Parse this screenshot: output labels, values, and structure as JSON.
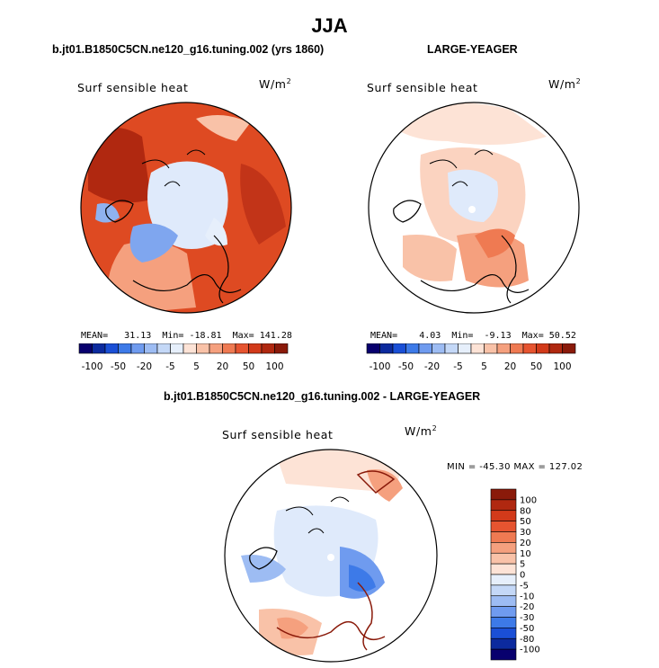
{
  "header": {
    "title": "JJA"
  },
  "panels": [
    {
      "subtitle": "b.jt01.B1850C5CN.ne120_g16.tuning.002 (yrs 1860)",
      "variable": "Surf sensible heat",
      "units": "W/m",
      "units_exp": "2",
      "stats": {
        "mean_label": "MEAN=",
        "mean": "31.13",
        "min_label": "Min=",
        "min": "-18.81",
        "max_label": "Max=",
        "max": "141.28"
      }
    },
    {
      "subtitle": "LARGE-YEAGER",
      "variable": "Surf sensible heat",
      "units": "W/m",
      "units_exp": "2",
      "stats": {
        "mean_label": "MEAN=",
        "mean": "4.03",
        "min_label": "Min=",
        "min": "-9.13",
        "max_label": "Max=",
        "max": "50.52"
      }
    },
    {
      "subtitle": "b.jt01.B1850C5CN.ne120_g16.tuning.002 - LARGE-YEAGER",
      "variable": "Surf sensible heat",
      "units": "W/m",
      "units_exp": "2",
      "minmax": "MIN = -45.30 MAX = 127.02"
    }
  ],
  "colorbar_h": {
    "labels": [
      "-100",
      "-50",
      "-20",
      "-5",
      "5",
      "20",
      "50",
      "100"
    ],
    "colors": [
      "#08006e",
      "#0c2a9e",
      "#1a4fd6",
      "#3d7ae8",
      "#6f9bef",
      "#9dbcf3",
      "#c4d8f7",
      "#e6effb",
      "#fde3d6",
      "#f9c2a8",
      "#f5a07e",
      "#ef7a52",
      "#e65430",
      "#d23a1a",
      "#b02810",
      "#8a1a0a"
    ]
  },
  "colorbar_v": {
    "labels": [
      "100",
      "80",
      "50",
      "30",
      "20",
      "10",
      "5",
      "0",
      "-5",
      "-10",
      "-20",
      "-30",
      "-50",
      "-80",
      "-100"
    ],
    "colors": [
      "#8a1a0a",
      "#b02810",
      "#d23a1a",
      "#e65430",
      "#ef7a52",
      "#f5a07e",
      "#f9c2a8",
      "#fde3d6",
      "#e6effb",
      "#c4d8f7",
      "#9dbcf3",
      "#6f9bef",
      "#3d7ae8",
      "#1a4fd6",
      "#0c2a9e",
      "#08006e"
    ]
  }
}
